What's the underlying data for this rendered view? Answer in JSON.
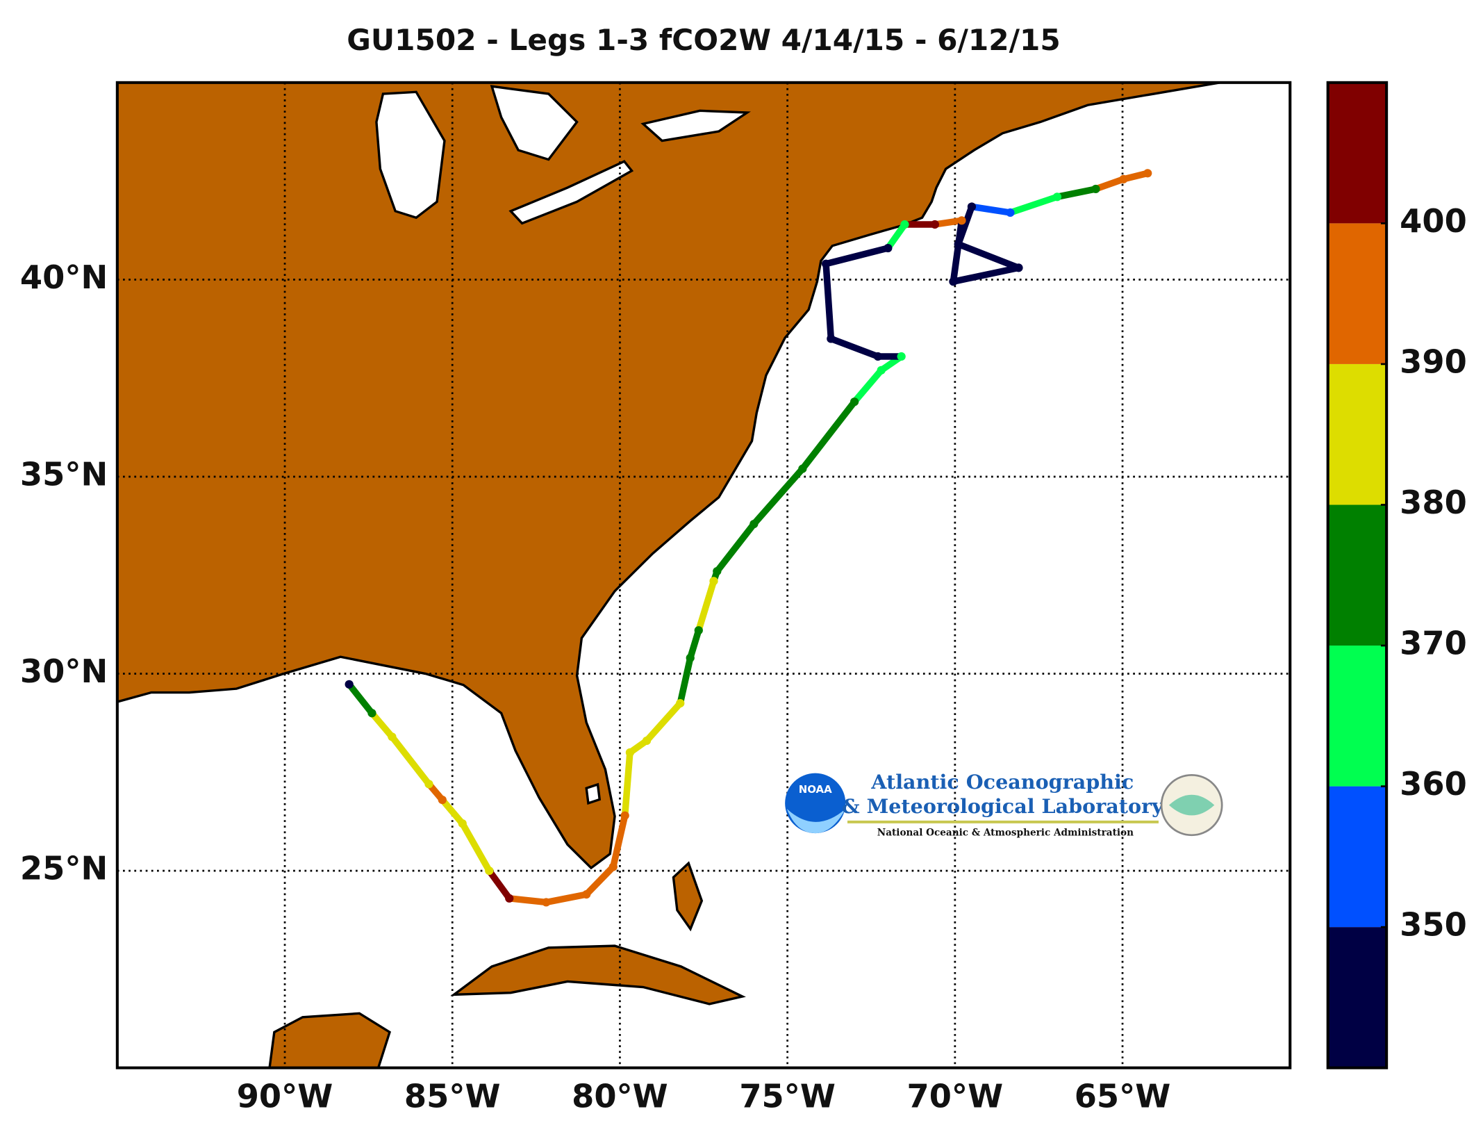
{
  "chart_data": {
    "type": "map",
    "title": "GU1502 - Legs 1-3 fCO2W 4/14/15 - 6/12/15",
    "xlim": [
      -95,
      -60
    ],
    "ylim": [
      20,
      45
    ],
    "xticks": [
      {
        "value": -90,
        "label": "90°W"
      },
      {
        "value": -85,
        "label": "85°W"
      },
      {
        "value": -80,
        "label": "80°W"
      },
      {
        "value": -75,
        "label": "75°W"
      },
      {
        "value": -70,
        "label": "70°W"
      },
      {
        "value": -65,
        "label": "65°W"
      }
    ],
    "yticks": [
      {
        "value": 25,
        "label": "25°N"
      },
      {
        "value": 30,
        "label": "30°N"
      },
      {
        "value": 35,
        "label": "35°N"
      },
      {
        "value": 40,
        "label": "40°N"
      }
    ],
    "grid": true,
    "land_color": "#bb6200",
    "colorbar": {
      "lim": [
        340,
        410
      ],
      "ticks": [
        350,
        360,
        370,
        380,
        390,
        400
      ],
      "colors": [
        "#000044",
        "#0050ff",
        "#00ff50",
        "#008000",
        "#dddd00",
        "#e06600",
        "#800000"
      ]
    },
    "track": {
      "lon": [
        -88.08,
        -87.4,
        -86.8,
        -85.7,
        -85.3,
        -84.7,
        -83.9,
        -83.3,
        -82.2,
        -81.0,
        -80.2,
        -79.85,
        -79.7,
        -79.2,
        -78.2,
        -77.9,
        -77.65,
        -77.2,
        -77.1,
        -76.0,
        -74.55,
        -73.0,
        -72.2,
        -71.6,
        -72.3,
        -73.7,
        -73.85,
        -72.0,
        -71.5,
        -70.6,
        -69.8,
        -70.05,
        -68.1,
        -69.9,
        -69.5,
        -68.35,
        -66.95,
        -65.8,
        -64.97,
        -64.25
      ],
      "lat": [
        29.73,
        29.0,
        28.4,
        27.2,
        26.8,
        26.2,
        25.0,
        24.3,
        24.2,
        24.4,
        25.1,
        26.4,
        28.0,
        28.3,
        29.25,
        30.4,
        31.1,
        32.35,
        32.6,
        33.8,
        35.2,
        36.9,
        37.7,
        38.05,
        38.05,
        38.5,
        40.4,
        40.8,
        41.4,
        41.4,
        41.5,
        39.95,
        40.3,
        40.9,
        41.85,
        41.7,
        42.1,
        42.3,
        42.55,
        42.7
      ],
      "fco2": [
        345,
        375,
        383,
        385,
        392,
        385,
        387,
        402,
        393,
        392,
        393,
        392,
        382,
        383,
        381,
        372,
        377,
        382,
        375,
        375,
        375,
        375,
        368,
        365,
        345,
        345,
        345,
        345,
        365,
        402,
        395,
        345,
        345,
        345,
        345,
        352,
        368,
        375,
        393,
        392
      ]
    },
    "logo": {
      "badge": "NOAA",
      "line1": "Atlantic Oceanographic",
      "line2": "& Meteorological Laboratory",
      "line3": "National Oceanic & Atmospheric Administration"
    }
  }
}
